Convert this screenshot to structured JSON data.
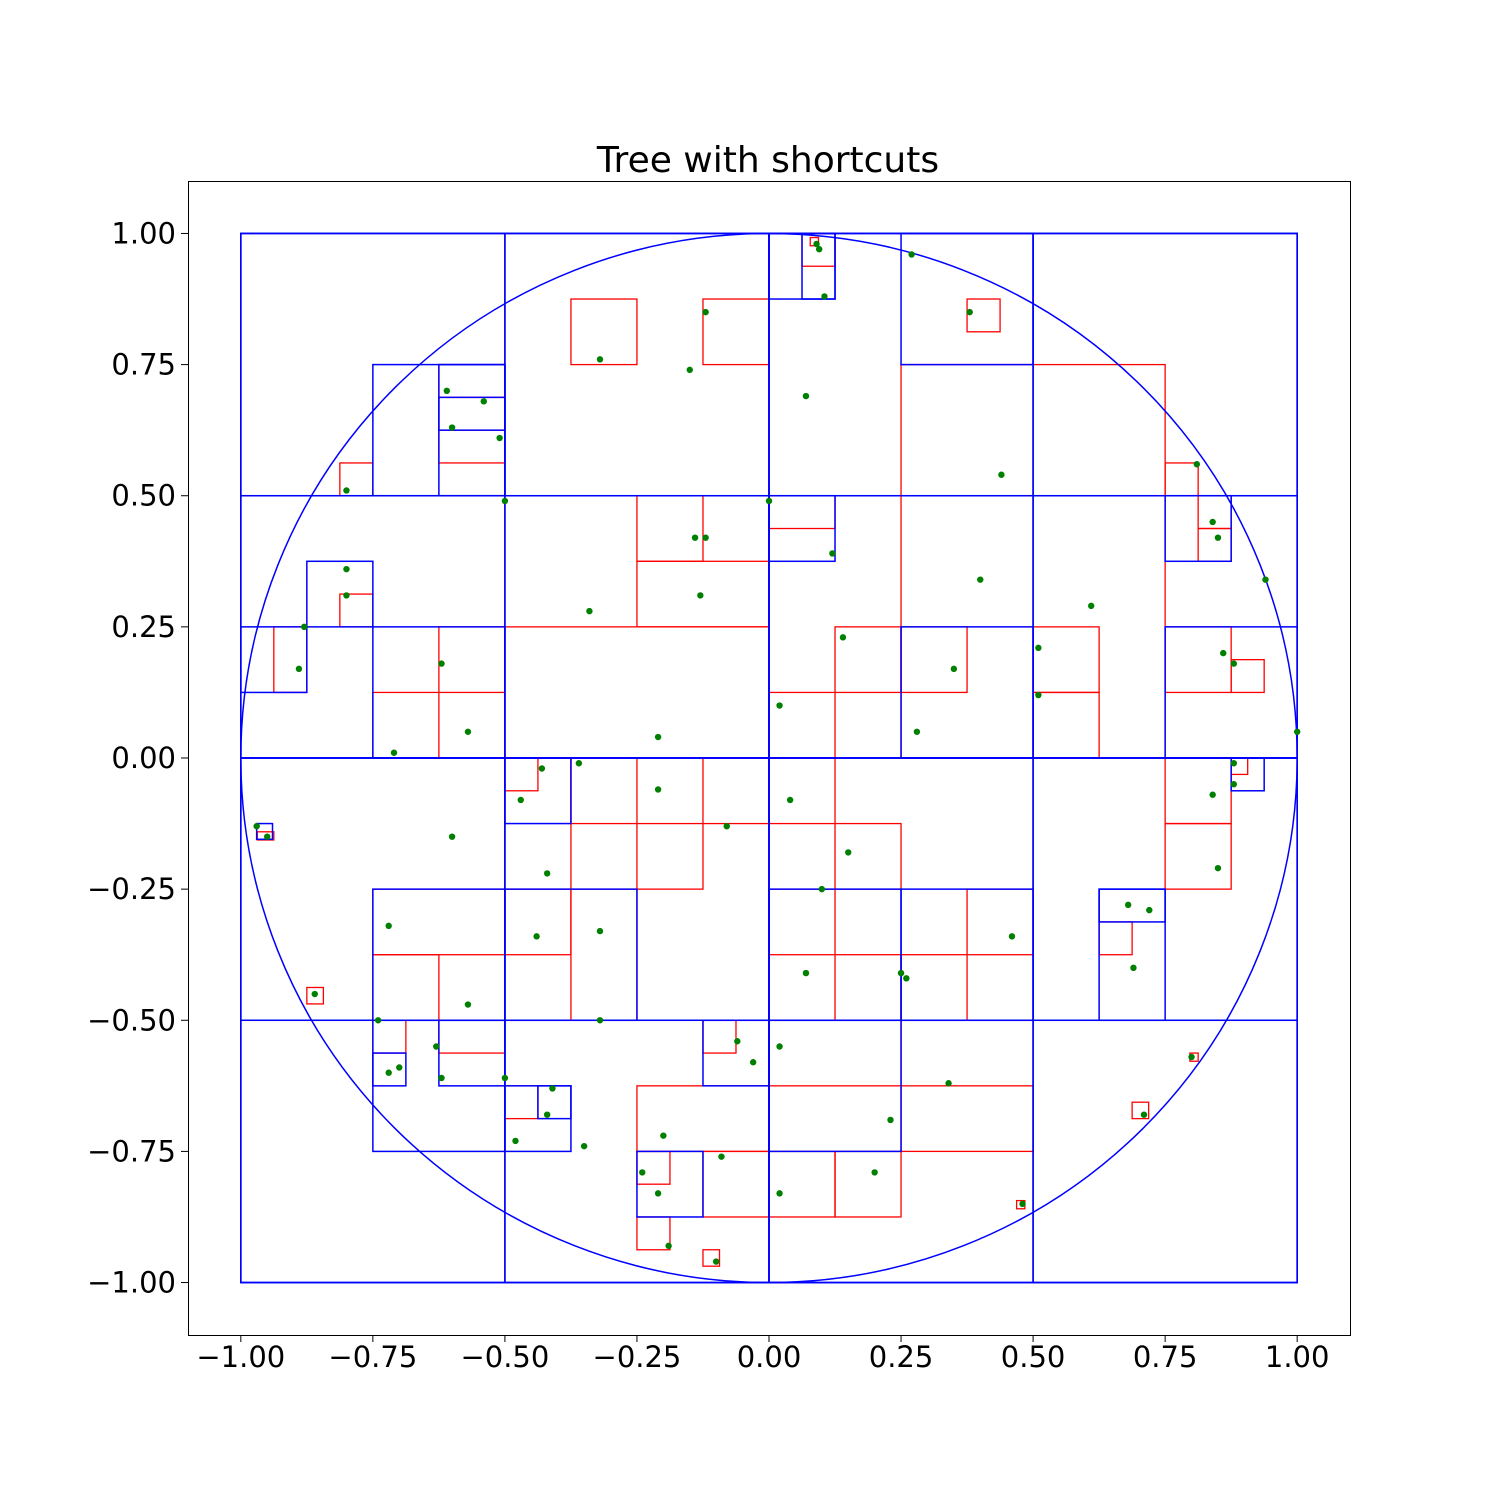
{
  "chart_data": {
    "type": "scatter",
    "title": "Tree with shortcuts",
    "xlabel": "",
    "ylabel": "",
    "xlim": [
      -1.1,
      1.1
    ],
    "ylim": [
      -1.1,
      1.1
    ],
    "grid": false,
    "x_ticks": [
      "−1.00",
      "−0.75",
      "−0.50",
      "−0.25",
      "0.00",
      "0.25",
      "0.50",
      "0.75",
      "1.00"
    ],
    "y_ticks": [
      "−1.00",
      "−0.75",
      "−0.50",
      "−0.25",
      "0.00",
      "0.25",
      "0.50",
      "0.75",
      "1.00"
    ],
    "colors": {
      "tree": "#0000ff",
      "shortcut": "#ff0000",
      "point": "#008000"
    },
    "circle": {
      "cx": 0,
      "cy": 0,
      "r": 1
    },
    "blue_boxes": [
      [
        -1,
        -1,
        2,
        2
      ],
      [
        -1,
        -1,
        1,
        1
      ],
      [
        -1,
        0,
        1,
        1
      ],
      [
        0,
        -1,
        1,
        1
      ],
      [
        0,
        0,
        1,
        1
      ],
      [
        -1,
        0.5,
        0.5,
        0.5
      ],
      [
        -0.5,
        0.5,
        0.5,
        0.5
      ],
      [
        0,
        0.5,
        0.5,
        0.5
      ],
      [
        0.5,
        0.5,
        0.5,
        0.5
      ],
      [
        -1,
        0,
        0.5,
        0.5
      ],
      [
        -0.5,
        0,
        0.5,
        0.5
      ],
      [
        0,
        0,
        0.5,
        0.5
      ],
      [
        0.5,
        0,
        0.5,
        0.5
      ],
      [
        -1,
        -0.5,
        0.5,
        0.5
      ],
      [
        -0.5,
        -0.5,
        0.5,
        0.5
      ],
      [
        0,
        -0.5,
        0.5,
        0.5
      ],
      [
        0.5,
        -0.5,
        0.5,
        0.5
      ],
      [
        -1,
        -1,
        0.5,
        0.5
      ],
      [
        -0.5,
        -1,
        0.5,
        0.5
      ],
      [
        0,
        -1,
        0.5,
        0.5
      ],
      [
        0.5,
        -1,
        0.5,
        0.5
      ],
      [
        0,
        0.875,
        0.125,
        0.125
      ],
      [
        0.0625,
        0.875,
        0.0625,
        0.125
      ],
      [
        0.25,
        0.75,
        0.25,
        0.25
      ],
      [
        -0.75,
        0.5,
        0.25,
        0.25
      ],
      [
        -0.625,
        0.5,
        0.125,
        0.25
      ],
      [
        -0.625,
        0.625,
        0.125,
        0.0625
      ],
      [
        -0.875,
        0.25,
        0.125,
        0.125
      ],
      [
        -1,
        0.125,
        0.125,
        0.125
      ],
      [
        0,
        0.375,
        0.125,
        0.125
      ],
      [
        0.75,
        0.375,
        0.125,
        0.125
      ],
      [
        -0.75,
        0,
        0.25,
        0.25
      ],
      [
        0.25,
        0,
        0.25,
        0.25
      ],
      [
        0.75,
        0,
        0.25,
        0.25
      ],
      [
        0.875,
        -0.0625,
        0.0625,
        0.0625
      ],
      [
        -0.5,
        -0.125,
        0.125,
        0.125
      ],
      [
        -0.97,
        -0.155,
        0.03,
        0.03
      ],
      [
        -0.75,
        -0.5,
        0.25,
        0.25
      ],
      [
        -0.5,
        -0.5,
        0.25,
        0.25
      ],
      [
        0,
        -0.5,
        0.25,
        0.25
      ],
      [
        0.25,
        -0.5,
        0.25,
        0.25
      ],
      [
        0.625,
        -0.5,
        0.125,
        0.25
      ],
      [
        0.625,
        -0.3125,
        0.125,
        0.0625
      ],
      [
        -0.75,
        -0.75,
        0.25,
        0.25
      ],
      [
        -0.75,
        -0.625,
        0.0625,
        0.0625
      ],
      [
        -0.625,
        -0.625,
        0.125,
        0.125
      ],
      [
        -0.125,
        -0.625,
        0.125,
        0.125
      ],
      [
        -0.5,
        -0.75,
        0.125,
        0.125
      ],
      [
        -0.4375,
        -0.6875,
        0.0625,
        0.0625
      ],
      [
        0,
        -0.75,
        0.25,
        0.25
      ],
      [
        -0.25,
        -0.875,
        0.125,
        0.125
      ]
    ],
    "red_boxes": [
      [
        -0.375,
        0.75,
        0.125,
        0.125
      ],
      [
        -0.125,
        0.75,
        0.125,
        0.125
      ],
      [
        0.375,
        0.8125,
        0.0625,
        0.0625
      ],
      [
        0.0625,
        0.9375,
        0.0625,
        0.0625
      ],
      [
        0.0781,
        0.9766,
        0.0156,
        0.0156
      ],
      [
        -0.625,
        0.5625,
        0.125,
        0.0625
      ],
      [
        -0.625,
        0.6875,
        0.125,
        0.0625
      ],
      [
        -0.8125,
        0.5,
        0.0625,
        0.0625
      ],
      [
        -0.8125,
        0.25,
        0.0625,
        0.0625
      ],
      [
        -0.9375,
        0.125,
        0.0625,
        0.125
      ],
      [
        0.75,
        0.5,
        0.0625,
        0.0625
      ],
      [
        0.8125,
        0.4375,
        0.0625,
        0.0625
      ],
      [
        0.8125,
        0.375,
        0.0625,
        0.0625
      ],
      [
        0,
        0.4375,
        0.125,
        0.0625
      ],
      [
        -0.25,
        0.25,
        0.25,
        0.125
      ],
      [
        -0.25,
        0.375,
        0.125,
        0.125
      ],
      [
        0.25,
        0,
        0.5,
        0.75
      ],
      [
        -0.5,
        0,
        0.5,
        0.25
      ],
      [
        -0.75,
        0,
        0.125,
        0.125
      ],
      [
        -0.625,
        0.125,
        0.125,
        0.125
      ],
      [
        0,
        0,
        0.125,
        0.125
      ],
      [
        0.125,
        0.125,
        0.125,
        0.125
      ],
      [
        0.25,
        0.125,
        0.125,
        0.125
      ],
      [
        0.5,
        0,
        0.125,
        0.125
      ],
      [
        0.5,
        0.125,
        0.125,
        0.125
      ],
      [
        0.75,
        0.125,
        0.125,
        0.125
      ],
      [
        0.875,
        0.125,
        0.0625,
        0.0625
      ],
      [
        0.875,
        -0.0313,
        0.0313,
        0.0313
      ],
      [
        0.75,
        -0.25,
        0.125,
        0.125
      ],
      [
        0.75,
        -0.125,
        0.125,
        0.125
      ],
      [
        -0.75,
        -0.5,
        0.125,
        0.125
      ],
      [
        -0.75,
        -0.375,
        0.25,
        0.125
      ],
      [
        -0.5,
        -0.25,
        0.125,
        0.25
      ],
      [
        -0.5,
        -0.0625,
        0.0625,
        0.0625
      ],
      [
        -0.375,
        -0.125,
        0.125,
        0.125
      ],
      [
        -0.25,
        -0.25,
        0.125,
        0.125
      ],
      [
        -0.125,
        -0.125,
        0.125,
        0.125
      ],
      [
        0,
        -0.125,
        0.125,
        0.125
      ],
      [
        0.125,
        -0.25,
        0.125,
        0.125
      ],
      [
        -0.5,
        -0.375,
        0.125,
        0.125
      ],
      [
        -0.375,
        -0.5,
        0.125,
        0.25
      ],
      [
        0,
        -0.375,
        0.125,
        0.125
      ],
      [
        0.125,
        -0.5,
        0.125,
        0.125
      ],
      [
        0.375,
        -0.375,
        0.125,
        0.125
      ],
      [
        0.25,
        -0.5,
        0.125,
        0.125
      ],
      [
        0.625,
        -0.375,
        0.0625,
        0.0625
      ],
      [
        -0.75,
        -0.5625,
        0.0625,
        0.0625
      ],
      [
        -0.625,
        -0.5625,
        0.125,
        0.0625
      ],
      [
        -0.125,
        -0.5625,
        0.0625,
        0.0625
      ],
      [
        -0.5,
        -0.6875,
        0.0625,
        0.0625
      ],
      [
        0,
        -0.625,
        0.25,
        0.125
      ],
      [
        0.25,
        -0.75,
        0.25,
        0.125
      ],
      [
        -0.25,
        -0.75,
        0.25,
        0.125
      ],
      [
        -0.125,
        -0.875,
        0.125,
        0.125
      ],
      [
        -0.25,
        -0.9375,
        0.0625,
        0.0625
      ],
      [
        -0.25,
        -0.8125,
        0.0625,
        0.0625
      ],
      [
        0,
        -0.875,
        0.125,
        0.125
      ],
      [
        0.125,
        -0.875,
        0.125,
        0.125
      ],
      [
        -0.125,
        -0.9688,
        0.0313,
        0.0313
      ],
      [
        0.6875,
        -0.6875,
        0.0313,
        0.0313
      ],
      [
        0.4688,
        -0.8594,
        0.0156,
        0.0156
      ],
      [
        0.7969,
        -0.5781,
        0.0156,
        0.0156
      ],
      [
        -0.875,
        -0.4688,
        0.0313,
        0.0313
      ],
      [
        -0.9688,
        -0.1563,
        0.0313,
        0.0156
      ]
    ],
    "points": [
      [
        0.09,
        0.98
      ],
      [
        0.095,
        0.97
      ],
      [
        0.105,
        0.88
      ],
      [
        0.27,
        0.96
      ],
      [
        0.38,
        0.85
      ],
      [
        -0.12,
        0.85
      ],
      [
        -0.32,
        0.76
      ],
      [
        -0.15,
        0.74
      ],
      [
        0.07,
        0.69
      ],
      [
        -0.61,
        0.7
      ],
      [
        -0.54,
        0.68
      ],
      [
        -0.6,
        0.63
      ],
      [
        -0.51,
        0.61
      ],
      [
        -0.8,
        0.51
      ],
      [
        0.44,
        0.54
      ],
      [
        0.81,
        0.56
      ],
      [
        -0.5,
        0.49
      ],
      [
        0.0,
        0.49
      ],
      [
        0.12,
        0.39
      ],
      [
        -0.14,
        0.42
      ],
      [
        -0.12,
        0.42
      ],
      [
        0.84,
        0.45
      ],
      [
        0.85,
        0.42
      ],
      [
        -0.8,
        0.36
      ],
      [
        -0.8,
        0.31
      ],
      [
        -0.13,
        0.31
      ],
      [
        0.4,
        0.34
      ],
      [
        0.94,
        0.34
      ],
      [
        -0.34,
        0.28
      ],
      [
        0.61,
        0.29
      ],
      [
        -0.88,
        0.25
      ],
      [
        -0.89,
        0.17
      ],
      [
        0.14,
        0.23
      ],
      [
        0.51,
        0.21
      ],
      [
        0.86,
        0.2
      ],
      [
        0.88,
        0.18
      ],
      [
        -0.62,
        0.18
      ],
      [
        0.35,
        0.17
      ],
      [
        0.51,
        0.12
      ],
      [
        -0.57,
        0.05
      ],
      [
        0.02,
        0.1
      ],
      [
        0.28,
        0.05
      ],
      [
        -0.21,
        0.04
      ],
      [
        -0.71,
        0.01
      ],
      [
        1.0,
        0.05
      ],
      [
        -0.36,
        -0.01
      ],
      [
        -0.43,
        -0.02
      ],
      [
        -0.47,
        -0.08
      ],
      [
        -0.21,
        -0.06
      ],
      [
        0.04,
        -0.08
      ],
      [
        0.88,
        -0.01
      ],
      [
        0.88,
        -0.05
      ],
      [
        0.84,
        -0.07
      ],
      [
        -0.08,
        -0.13
      ],
      [
        -0.97,
        -0.13
      ],
      [
        -0.95,
        -0.15
      ],
      [
        -0.6,
        -0.15
      ],
      [
        0.15,
        -0.18
      ],
      [
        -0.42,
        -0.22
      ],
      [
        0.85,
        -0.21
      ],
      [
        0.1,
        -0.25
      ],
      [
        0.68,
        -0.28
      ],
      [
        0.72,
        -0.29
      ],
      [
        -0.72,
        -0.32
      ],
      [
        -0.32,
        -0.33
      ],
      [
        -0.44,
        -0.34
      ],
      [
        0.46,
        -0.34
      ],
      [
        0.69,
        -0.4
      ],
      [
        0.07,
        -0.41
      ],
      [
        0.25,
        -0.41
      ],
      [
        0.26,
        -0.42
      ],
      [
        -0.86,
        -0.45
      ],
      [
        -0.57,
        -0.47
      ],
      [
        -0.74,
        -0.5
      ],
      [
        -0.32,
        -0.5
      ],
      [
        -0.06,
        -0.54
      ],
      [
        0.02,
        -0.55
      ],
      [
        -0.63,
        -0.55
      ],
      [
        -0.03,
        -0.58
      ],
      [
        0.8,
        -0.57
      ],
      [
        -0.72,
        -0.6
      ],
      [
        -0.7,
        -0.59
      ],
      [
        -0.62,
        -0.61
      ],
      [
        -0.5,
        -0.61
      ],
      [
        0.34,
        -0.62
      ],
      [
        -0.41,
        -0.63
      ],
      [
        -0.42,
        -0.68
      ],
      [
        0.23,
        -0.69
      ],
      [
        0.71,
        -0.68
      ],
      [
        -0.48,
        -0.73
      ],
      [
        -0.2,
        -0.72
      ],
      [
        -0.35,
        -0.74
      ],
      [
        -0.09,
        -0.76
      ],
      [
        -0.24,
        -0.79
      ],
      [
        0.2,
        -0.79
      ],
      [
        -0.21,
        -0.83
      ],
      [
        0.02,
        -0.83
      ],
      [
        0.48,
        -0.85
      ],
      [
        -0.19,
        -0.93
      ],
      [
        -0.1,
        -0.96
      ]
    ]
  }
}
